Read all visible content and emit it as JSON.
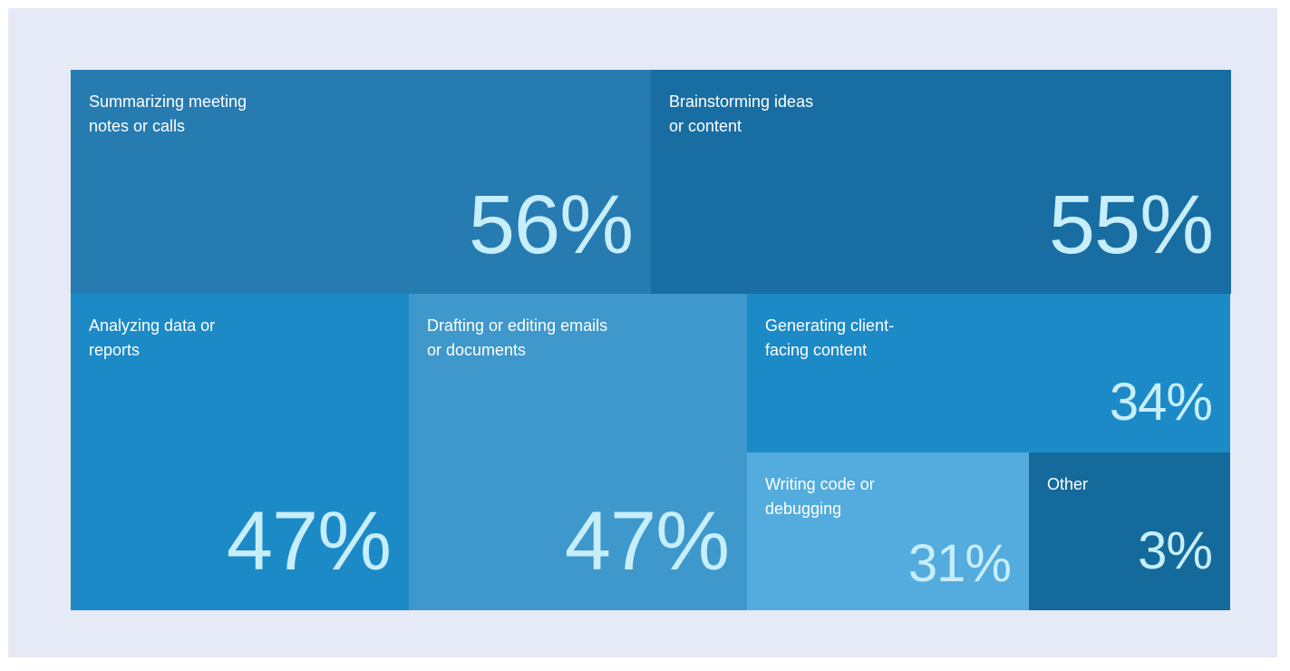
{
  "colors": {
    "background": "#e6e9f6",
    "label": "#ffffff",
    "value": "#c7eefb"
  },
  "chart_data": {
    "type": "treemap",
    "unit": "%",
    "items": [
      {
        "key": "summarizing",
        "label": "Summarizing meeting\nnotes or calls",
        "value": 56,
        "display": "56%",
        "color": "#267bb0"
      },
      {
        "key": "brainstorming",
        "label": "Brainstorming ideas\nor content",
        "value": 55,
        "display": "55%",
        "color": "#186ea3"
      },
      {
        "key": "analyzing",
        "label": "Analyzing data or\nreports",
        "value": 47,
        "display": "47%",
        "color": "#1c8ac7"
      },
      {
        "key": "drafting",
        "label": "Drafting or editing emails\nor documents",
        "value": 47,
        "display": "47%",
        "color": "#3e98cb"
      },
      {
        "key": "generating",
        "label": "Generating client-\nfacing content",
        "value": 34,
        "display": "34%",
        "color": "#1c8ac7"
      },
      {
        "key": "writing_code",
        "label": "Writing code or\ndebugging",
        "value": 31,
        "display": "31%",
        "color": "#53acdd"
      },
      {
        "key": "other",
        "label": "Other",
        "value": 3,
        "display": "3%",
        "color": "#146a9b"
      }
    ]
  }
}
